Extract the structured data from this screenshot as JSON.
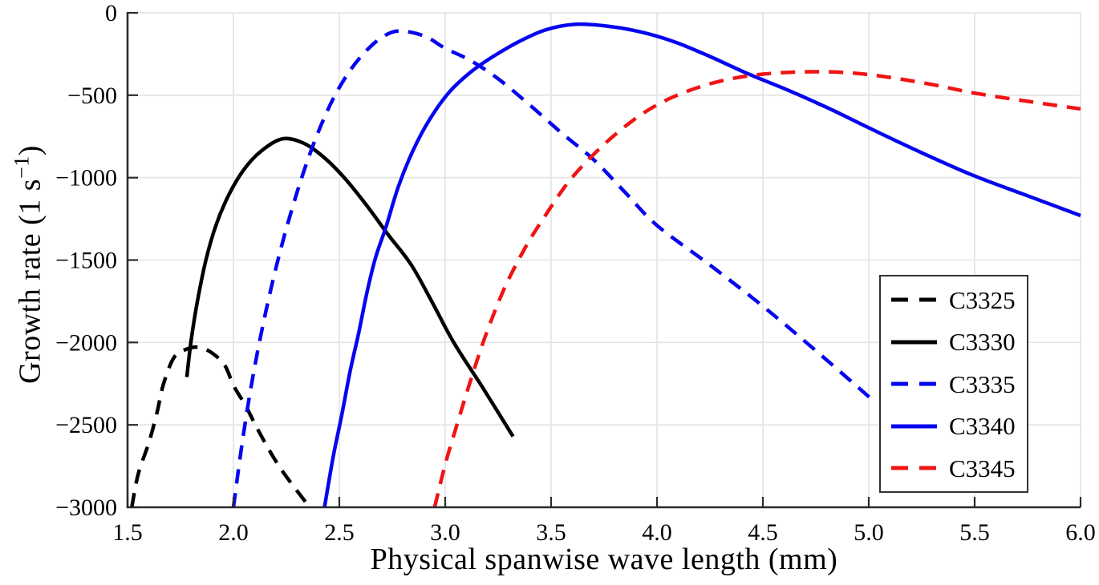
{
  "figure": {
    "xlabel": "Physical spanwise wave length (mm)",
    "ylabel_prefix": "Growth rate (1 s",
    "ylabel_sup": "−1",
    "ylabel_suffix": ")"
  },
  "colors": {
    "black": "#000000",
    "blue": "#0505F0",
    "red": "#F01414",
    "grid": "#E3E3E3",
    "spine": "#2B2B2B",
    "legend_border": "#333333"
  },
  "chart_data": {
    "type": "line",
    "title": "",
    "xlabel": "Physical spanwise wave length (mm)",
    "ylabel": "Growth rate (1 s−1)",
    "xlim": [
      1.5,
      6.0
    ],
    "ylim": [
      -3000,
      0
    ],
    "grid": true,
    "legend_position": "lower right",
    "xtick_values": [
      1.5,
      2.0,
      2.5,
      3.0,
      3.5,
      4.0,
      4.5,
      5.0,
      5.5,
      6.0
    ],
    "xticks": [
      "1.5",
      "2.0",
      "2.5",
      "3.0",
      "3.5",
      "4.0",
      "4.5",
      "5.0",
      "5.5",
      "6.0"
    ],
    "ytick_values": [
      0,
      -500,
      -1000,
      -1500,
      -2000,
      -2500,
      -3000
    ],
    "yticks": [
      "0",
      "−500",
      "−1000",
      "−1500",
      "−2000",
      "−2500",
      "−3000"
    ],
    "series": [
      {
        "name": "C3325",
        "color": "#000000",
        "dash": true,
        "points": [
          [
            1.52,
            -3000
          ],
          [
            1.55,
            -2800
          ],
          [
            1.6,
            -2610
          ],
          [
            1.64,
            -2420
          ],
          [
            1.67,
            -2250
          ],
          [
            1.72,
            -2090
          ],
          [
            1.78,
            -2040
          ],
          [
            1.84,
            -2030
          ],
          [
            1.9,
            -2065
          ],
          [
            1.96,
            -2140
          ],
          [
            2.0,
            -2260
          ],
          [
            2.06,
            -2390
          ],
          [
            2.12,
            -2540
          ],
          [
            2.22,
            -2760
          ],
          [
            2.36,
            -3000
          ]
        ]
      },
      {
        "name": "C3330",
        "color": "#000000",
        "dash": false,
        "points": [
          [
            1.78,
            -2210
          ],
          [
            1.8,
            -1990
          ],
          [
            1.83,
            -1750
          ],
          [
            1.87,
            -1500
          ],
          [
            1.92,
            -1280
          ],
          [
            1.98,
            -1100
          ],
          [
            2.05,
            -950
          ],
          [
            2.13,
            -840
          ],
          [
            2.23,
            -765
          ],
          [
            2.33,
            -790
          ],
          [
            2.43,
            -880
          ],
          [
            2.53,
            -1010
          ],
          [
            2.63,
            -1170
          ],
          [
            2.73,
            -1345
          ],
          [
            2.84,
            -1530
          ],
          [
            2.94,
            -1760
          ],
          [
            3.04,
            -2000
          ],
          [
            3.18,
            -2280
          ],
          [
            3.32,
            -2570
          ]
        ]
      },
      {
        "name": "C3335",
        "color": "#0505F0",
        "dash": true,
        "points": [
          [
            2.0,
            -3000
          ],
          [
            2.04,
            -2620
          ],
          [
            2.09,
            -2220
          ],
          [
            2.15,
            -1830
          ],
          [
            2.22,
            -1450
          ],
          [
            2.3,
            -1090
          ],
          [
            2.38,
            -790
          ],
          [
            2.46,
            -550
          ],
          [
            2.54,
            -370
          ],
          [
            2.62,
            -240
          ],
          [
            2.7,
            -150
          ],
          [
            2.78,
            -110
          ],
          [
            2.9,
            -140
          ],
          [
            3.0,
            -215
          ],
          [
            3.12,
            -290
          ],
          [
            3.25,
            -400
          ],
          [
            3.4,
            -560
          ],
          [
            3.55,
            -730
          ],
          [
            3.7,
            -890
          ],
          [
            3.85,
            -1090
          ],
          [
            4.0,
            -1290
          ],
          [
            4.25,
            -1530
          ],
          [
            4.5,
            -1780
          ],
          [
            4.75,
            -2050
          ],
          [
            5.01,
            -2340
          ]
        ]
      },
      {
        "name": "C3340",
        "color": "#0505F0",
        "dash": false,
        "points": [
          [
            2.43,
            -3000
          ],
          [
            2.47,
            -2700
          ],
          [
            2.51,
            -2450
          ],
          [
            2.55,
            -2180
          ],
          [
            2.59,
            -1950
          ],
          [
            2.63,
            -1700
          ],
          [
            2.67,
            -1490
          ],
          [
            2.72,
            -1300
          ],
          [
            2.78,
            -1050
          ],
          [
            2.85,
            -830
          ],
          [
            2.93,
            -640
          ],
          [
            3.02,
            -480
          ],
          [
            3.12,
            -360
          ],
          [
            3.22,
            -270
          ],
          [
            3.34,
            -180
          ],
          [
            3.47,
            -105
          ],
          [
            3.61,
            -70
          ],
          [
            3.76,
            -80
          ],
          [
            3.92,
            -115
          ],
          [
            4.08,
            -175
          ],
          [
            4.25,
            -265
          ],
          [
            4.43,
            -370
          ],
          [
            4.62,
            -470
          ],
          [
            4.82,
            -585
          ],
          [
            5.02,
            -710
          ],
          [
            5.26,
            -855
          ],
          [
            5.5,
            -990
          ],
          [
            5.75,
            -1110
          ],
          [
            6.0,
            -1230
          ]
        ]
      },
      {
        "name": "C3345",
        "color": "#F01414",
        "dash": true,
        "points": [
          [
            2.95,
            -3000
          ],
          [
            3.0,
            -2740
          ],
          [
            3.06,
            -2480
          ],
          [
            3.12,
            -2230
          ],
          [
            3.19,
            -1960
          ],
          [
            3.28,
            -1670
          ],
          [
            3.38,
            -1420
          ],
          [
            3.47,
            -1235
          ],
          [
            3.58,
            -1030
          ],
          [
            3.7,
            -860
          ],
          [
            3.82,
            -720
          ],
          [
            3.94,
            -605
          ],
          [
            4.06,
            -520
          ],
          [
            4.2,
            -450
          ],
          [
            4.35,
            -400
          ],
          [
            4.5,
            -372
          ],
          [
            4.65,
            -360
          ],
          [
            4.8,
            -358
          ],
          [
            4.95,
            -368
          ],
          [
            5.1,
            -392
          ],
          [
            5.3,
            -435
          ],
          [
            5.5,
            -487
          ],
          [
            5.75,
            -537
          ],
          [
            6.0,
            -583
          ]
        ]
      }
    ]
  }
}
